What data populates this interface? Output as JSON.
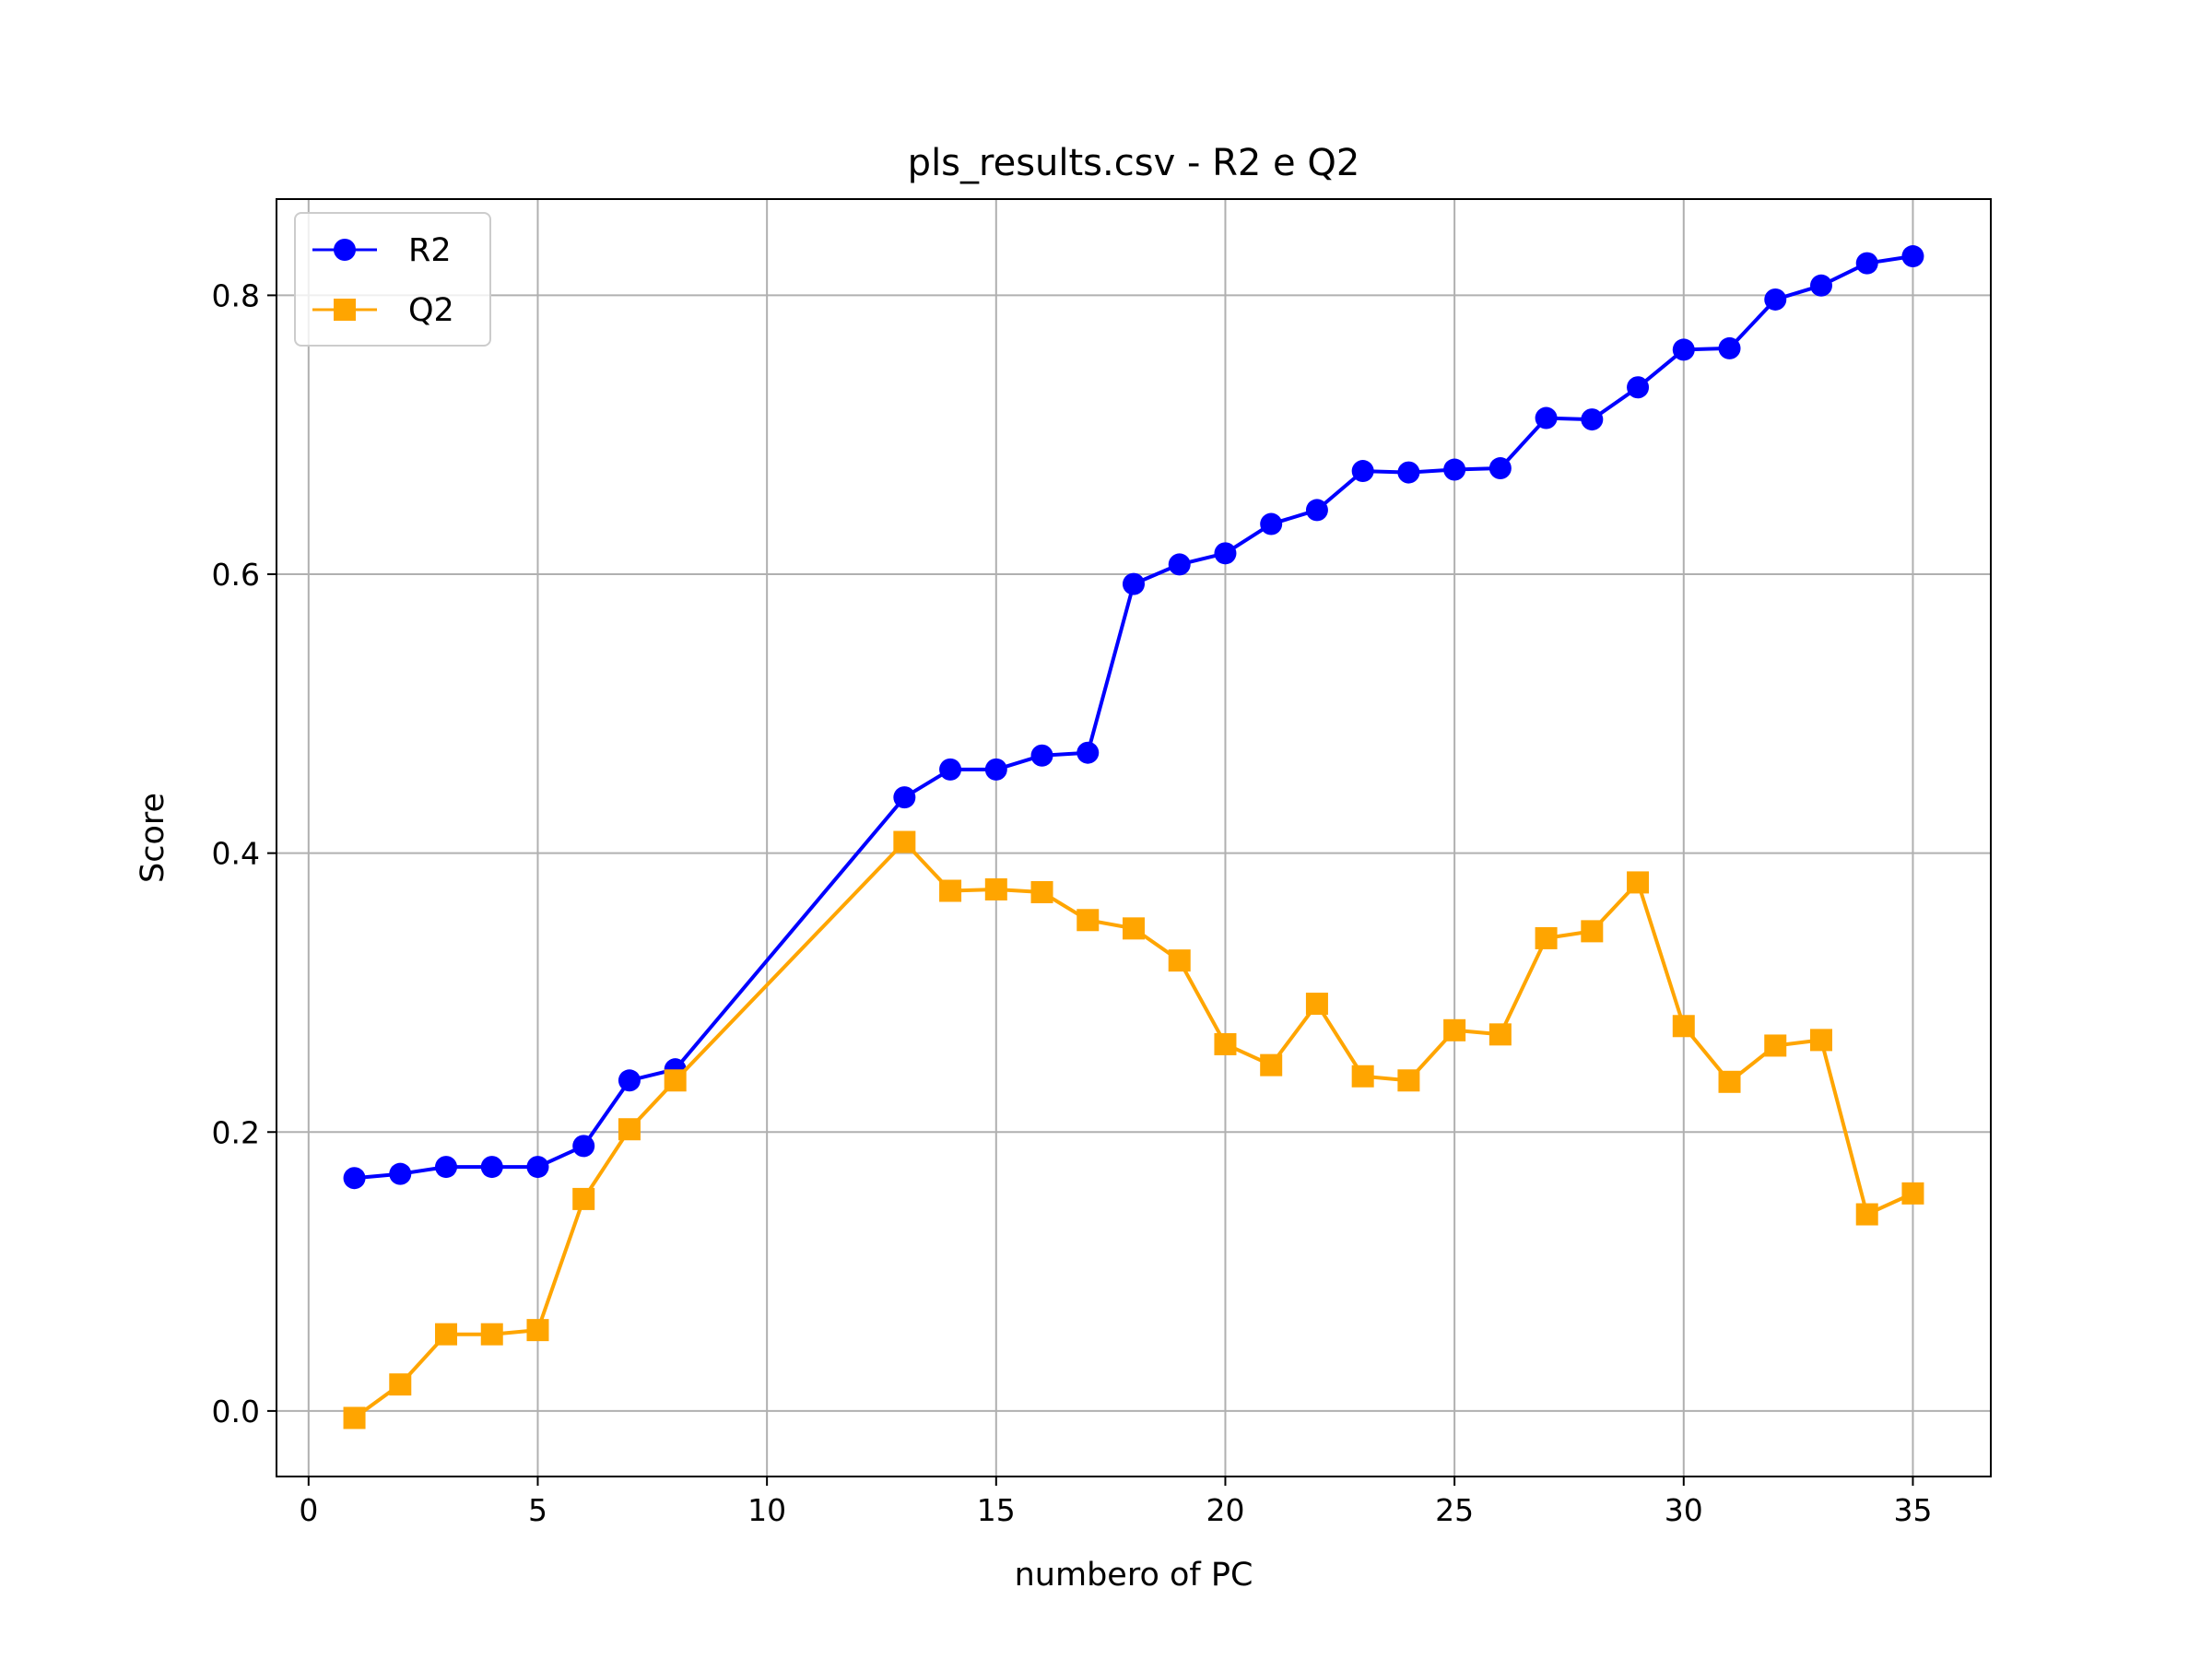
{
  "chart_data": {
    "type": "line",
    "title": "pls_results.csv - R2 e Q2",
    "xlabel": "numbero of PC",
    "ylabel": "Score",
    "xlim": [
      -0.7,
      36.7
    ],
    "ylim": [
      -0.047,
      0.869
    ],
    "xticks": [
      0,
      5,
      10,
      15,
      20,
      25,
      30,
      35
    ],
    "yticks": [
      0.0,
      0.2,
      0.4,
      0.6,
      0.8
    ],
    "xtick_labels": [
      "0",
      "5",
      "10",
      "15",
      "20",
      "25",
      "30",
      "35"
    ],
    "ytick_labels": [
      "0.0",
      "0.2",
      "0.4",
      "0.6",
      "0.8"
    ],
    "grid": true,
    "legend_position": "upper-left",
    "series": [
      {
        "name": "R2",
        "color": "#0000ff",
        "marker": "circle",
        "x": [
          1,
          2,
          3,
          4,
          5,
          6,
          7,
          8,
          13,
          14,
          15,
          16,
          17,
          18,
          19,
          20,
          21,
          22,
          23,
          24,
          25,
          26,
          27,
          28,
          29,
          30,
          31,
          32,
          33,
          34,
          35
        ],
        "y": [
          0.167,
          0.17,
          0.175,
          0.175,
          0.175,
          0.19,
          0.237,
          0.245,
          0.44,
          0.46,
          0.46,
          0.47,
          0.472,
          0.593,
          0.607,
          0.615,
          0.636,
          0.646,
          0.674,
          0.673,
          0.675,
          0.676,
          0.712,
          0.711,
          0.734,
          0.761,
          0.762,
          0.797,
          0.807,
          0.823,
          0.828
        ]
      },
      {
        "name": "Q2",
        "color": "#ffa500",
        "marker": "square",
        "x": [
          1,
          2,
          3,
          4,
          5,
          6,
          7,
          8,
          13,
          14,
          15,
          16,
          17,
          18,
          19,
          20,
          21,
          22,
          23,
          24,
          25,
          26,
          27,
          28,
          29,
          30,
          31,
          32,
          33,
          34,
          35
        ],
        "y": [
          -0.005,
          0.019,
          0.055,
          0.055,
          0.058,
          0.152,
          0.202,
          0.237,
          0.408,
          0.373,
          0.374,
          0.372,
          0.352,
          0.346,
          0.323,
          0.263,
          0.248,
          0.292,
          0.24,
          0.237,
          0.273,
          0.27,
          0.339,
          0.344,
          0.379,
          0.276,
          0.236,
          0.262,
          0.266,
          0.141,
          0.156
        ]
      }
    ]
  }
}
